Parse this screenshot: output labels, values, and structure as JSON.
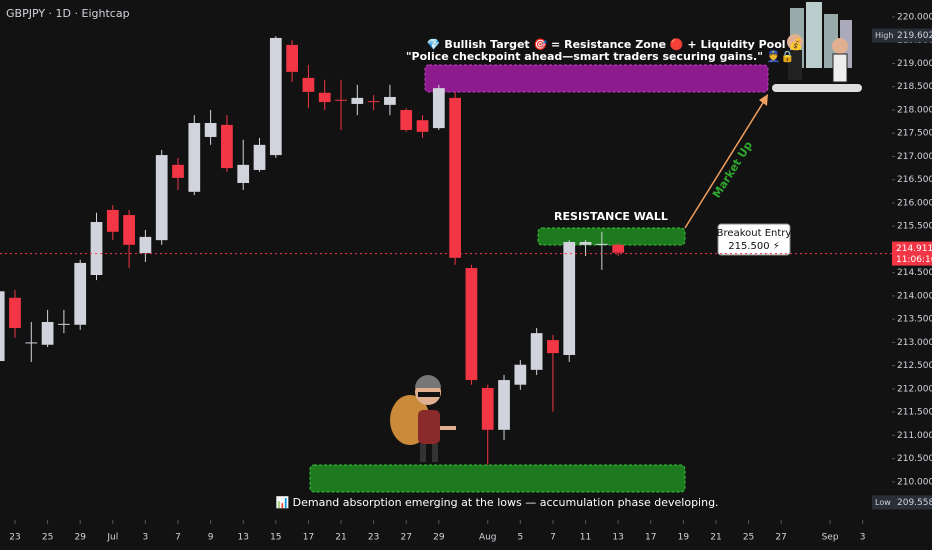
{
  "chart_data": {
    "type": "candlestick",
    "title": "GBPJPY · 1D · Eightcap",
    "up_color": "#d1d4dc",
    "down_color": "#f23645",
    "x": [
      0,
      1,
      2,
      3,
      4,
      5,
      6,
      7,
      8,
      9,
      10,
      11,
      12,
      13,
      14,
      15,
      16,
      17,
      18,
      19,
      20,
      21,
      22,
      23,
      24,
      25,
      26,
      27,
      28,
      29,
      30,
      31,
      32,
      33,
      34,
      35,
      36,
      37,
      38
    ],
    "open": [
      212.6,
      213.96,
      213.0,
      212.95,
      213.4,
      213.38,
      214.45,
      215.85,
      215.74,
      214.92,
      215.2,
      216.82,
      216.24,
      217.42,
      217.68,
      216.43,
      216.71,
      217.03,
      219.4,
      218.69,
      218.37,
      218.22,
      218.13,
      218.19,
      218.11,
      218.0,
      217.78,
      217.61,
      218.26,
      214.6,
      212.02,
      211.12,
      212.09,
      212.41,
      213.05,
      212.73,
      215.1,
      215.12,
      215.1
    ],
    "high": [
      214.2,
      214.13,
      213.44,
      213.7,
      213.7,
      214.78,
      215.79,
      215.95,
      215.85,
      215.42,
      217.14,
      216.97,
      217.89,
      218.0,
      217.89,
      217.36,
      217.4,
      219.59,
      219.5,
      218.97,
      218.65,
      218.65,
      218.54,
      218.32,
      218.54,
      218.04,
      217.89,
      218.54,
      218.39,
      214.67,
      212.09,
      212.3,
      212.62,
      213.31,
      213.16,
      215.2,
      215.2,
      215.38,
      215.14
    ],
    "low": [
      212.5,
      213.1,
      212.58,
      212.9,
      213.2,
      213.27,
      214.34,
      215.2,
      214.6,
      214.73,
      215.1,
      216.28,
      216.17,
      217.25,
      216.67,
      216.28,
      216.67,
      216.97,
      218.6,
      218.04,
      218.0,
      217.57,
      217.89,
      218.0,
      217.89,
      217.53,
      217.4,
      217.57,
      214.67,
      212.09,
      210.37,
      210.9,
      211.98,
      212.3,
      211.51,
      212.58,
      214.86,
      214.56,
      214.86
    ],
    "close": [
      214.1,
      213.31,
      213.0,
      213.44,
      213.4,
      214.71,
      215.59,
      215.38,
      215.1,
      215.27,
      217.03,
      216.54,
      217.72,
      217.72,
      216.75,
      216.82,
      217.25,
      219.55,
      218.82,
      218.39,
      218.17,
      218.2,
      218.26,
      218.17,
      218.28,
      217.57,
      217.53,
      218.47,
      214.82,
      212.19,
      211.12,
      212.19,
      212.52,
      213.2,
      212.77,
      215.16,
      215.16,
      215.12,
      214.93
    ],
    "xlim": [
      0.08,
      54.8
    ],
    "xticks": [
      {
        "value": 1,
        "label": "23"
      },
      {
        "value": 3,
        "label": "25"
      },
      {
        "value": 5,
        "label": "29"
      },
      {
        "value": 7,
        "label": "Jul"
      },
      {
        "value": 9,
        "label": "3"
      },
      {
        "value": 11,
        "label": "7"
      },
      {
        "value": 13,
        "label": "9"
      },
      {
        "value": 15,
        "label": "13"
      },
      {
        "value": 17,
        "label": "15"
      },
      {
        "value": 19,
        "label": "17"
      },
      {
        "value": 21,
        "label": "21"
      },
      {
        "value": 23,
        "label": "23"
      },
      {
        "value": 25,
        "label": "27"
      },
      {
        "value": 27,
        "label": "29"
      },
      {
        "value": 30,
        "label": "Aug"
      },
      {
        "value": 32,
        "label": "5"
      },
      {
        "value": 34,
        "label": "7"
      },
      {
        "value": 36,
        "label": "11"
      },
      {
        "value": 38,
        "label": "13"
      },
      {
        "value": 40,
        "label": "17"
      },
      {
        "value": 42,
        "label": "19"
      },
      {
        "value": 44,
        "label": "21"
      },
      {
        "value": 46,
        "label": "25"
      },
      {
        "value": 48,
        "label": "27"
      },
      {
        "value": 51,
        "label": "Sep"
      },
      {
        "value": 53,
        "label": "3"
      }
    ],
    "ylim": [
      209.18,
      220.366
    ],
    "yticks": [
      {
        "value": 210,
        "label": "210.000"
      },
      {
        "value": 210.5,
        "label": "210.500"
      },
      {
        "value": 211,
        "label": "211.000"
      },
      {
        "value": 211.5,
        "label": "211.500"
      },
      {
        "value": 212,
        "label": "212.000"
      },
      {
        "value": 212.5,
        "label": "212.500"
      },
      {
        "value": 213,
        "label": "213.000"
      },
      {
        "value": 213.5,
        "label": "213.500"
      },
      {
        "value": 214,
        "label": "214.000"
      },
      {
        "value": 214.5,
        "label": "214.500"
      },
      {
        "value": 215,
        "label": "215.000"
      },
      {
        "value": 215.5,
        "label": "215.500"
      },
      {
        "value": 216,
        "label": "216.000"
      },
      {
        "value": 216.5,
        "label": "216.500"
      },
      {
        "value": 217,
        "label": "217.000"
      },
      {
        "value": 217.5,
        "label": "217.500"
      },
      {
        "value": 218,
        "label": "218.000"
      },
      {
        "value": 218.5,
        "label": "218.500"
      },
      {
        "value": 219,
        "label": "219.000"
      },
      {
        "value": 219.5,
        "label": "219.500"
      },
      {
        "value": 220,
        "label": "220.000"
      }
    ],
    "current_price": 214.911,
    "countdown": "11:06:16",
    "high_tag": {
      "name": "High",
      "value": 219.602
    },
    "low_tag": {
      "name": "Low",
      "value": 209.558
    },
    "annotations": {
      "target_line1": "💎 Bullish Target 🎯 = Resistance Zone 🔴 + Liquidity Pool 💰",
      "target_line2": "\"Police checkpoint ahead—smart traders securing gains.\" 👮🔒",
      "resistance_wall": "RESISTANCE WALL",
      "breakout_entry": "Breakout Entry",
      "breakout_price": {
        "value": 215.5,
        "label": "215.500 ⚡"
      },
      "market_up": "Market Up",
      "demand": "📊 Demand absorption emerging at the lows — accumulation phase developing."
    }
  }
}
